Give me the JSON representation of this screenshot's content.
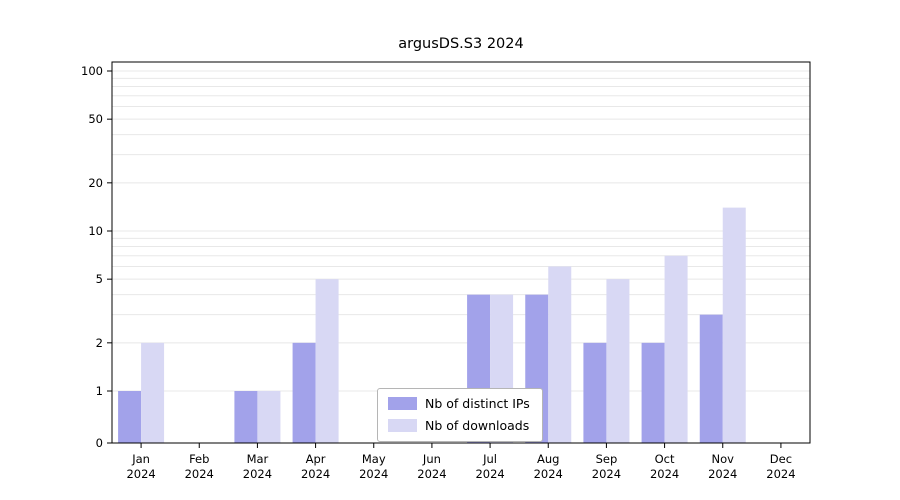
{
  "chart_data": {
    "type": "bar",
    "title": "argusDS.S3 2024",
    "categories": [
      "Jan",
      "Feb",
      "Mar",
      "Apr",
      "May",
      "Jun",
      "Jul",
      "Aug",
      "Sep",
      "Oct",
      "Nov",
      "Dec"
    ],
    "year": "2024",
    "series": [
      {
        "name": "Nb of distinct IPs",
        "color": "#a2a2ea",
        "values": [
          1,
          0,
          1,
          2,
          0,
          0,
          4,
          4,
          2,
          2,
          3,
          0
        ]
      },
      {
        "name": "Nb of downloads",
        "color": "#d8d8f4",
        "values": [
          2,
          0,
          1,
          5,
          0,
          0,
          4,
          6,
          5,
          7,
          14,
          0
        ]
      }
    ],
    "yscale": "symlog",
    "yticks": [
      0,
      1,
      2,
      5,
      10,
      20,
      50,
      100
    ],
    "grid_values": [
      1,
      2,
      3,
      4,
      5,
      6,
      7,
      8,
      9,
      10,
      20,
      30,
      40,
      50,
      60,
      70,
      80,
      90,
      100
    ],
    "ylim": [
      0,
      114
    ],
    "xlabel": "",
    "ylabel": "",
    "grid": "horizontal",
    "legend_position": "lower center",
    "colors": {
      "grid": "#e8e8e8",
      "axis": "#000000",
      "background": "#ffffff"
    }
  }
}
